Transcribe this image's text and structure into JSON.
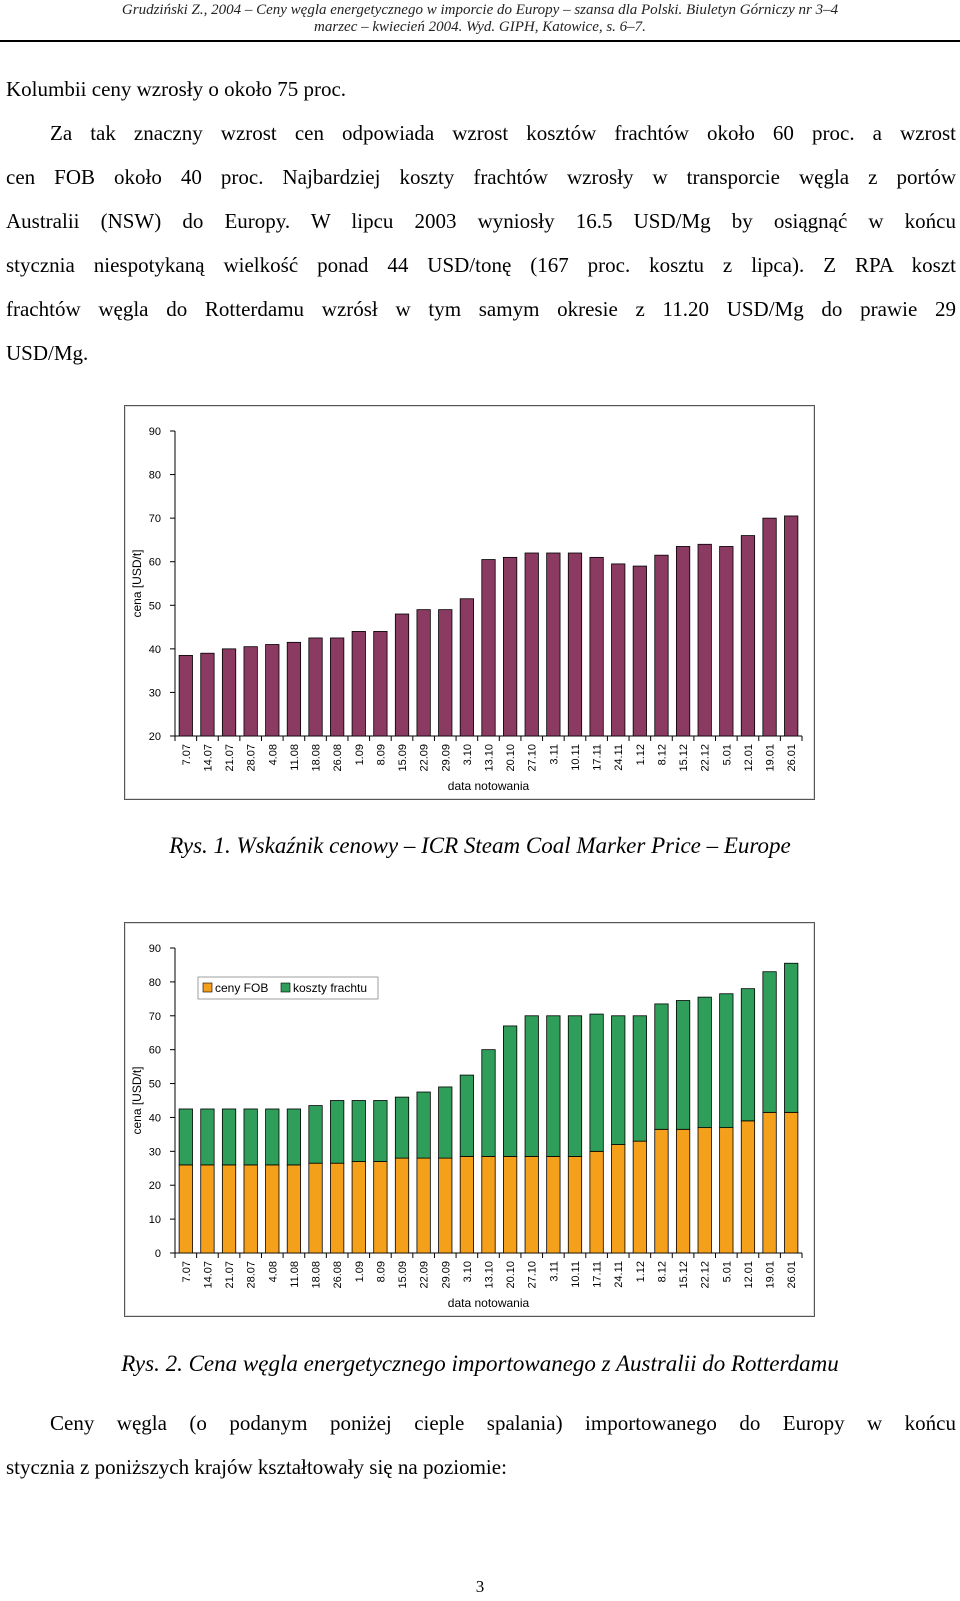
{
  "header": {
    "line1": "Grudziński Z., 2004 – Ceny węgla energetycznego w imporcie do Europy – szansa dla Polski. Biuletyn Górniczy nr 3–4",
    "line2": "marzec – kwiecień 2004. Wyd. GIPH, Katowice, s. 6–7."
  },
  "intro": {
    "first_line": "Kolumbii ceny wzrosły o około 75 proc.",
    "lines": [
      "Za tak znaczny wzrost cen odpowiada wzrost kosztów frachtów około 60 proc. a wzrost",
      "cen FOB około 40 proc. Najbardziej koszty frachtów wzrosły w transporcie węgla z portów",
      "Australii (NSW) do Europy. W lipcu 2003 wyniosły 16.5 USD/Mg  by osiągnąć w końcu",
      "stycznia niespotykaną wielkość ponad 44 USD/tonę (167 proc. kosztu z lipca). Z RPA koszt",
      "frachtów węgla do Rotterdamu wzrósł w tym samym okresie z 11.20 USD/Mg do prawie 29"
    ],
    "last_line": "USD/Mg."
  },
  "captions": {
    "fig1": "Rys. 1. Wskaźnik cenowy – ICR Steam Coal Marker Price – Europe",
    "fig2": "Rys. 2. Cena węgla energetycznego importowanego z Australii do Rotterdamu"
  },
  "outro": {
    "line1": "Ceny węgla (o podanym poniżej cieple spalania) importowanego do Europy w końcu",
    "line2": "stycznia z poniższych krajów kształtowały się na poziomie:"
  },
  "page_number": "3",
  "colors": {
    "bar_fig1": "#8B3A62",
    "fob": "#F5A01A",
    "freight": "#2E9E5A",
    "axis": "#000000"
  },
  "chart_data": [
    {
      "type": "bar",
      "title": "",
      "xlabel": "data notowania",
      "ylabel": "cena [USD/t]",
      "ylim": [
        20,
        90
      ],
      "yticks": [
        20,
        30,
        40,
        50,
        60,
        70,
        80,
        90
      ],
      "categories": [
        "7.07",
        "14.07",
        "21.07",
        "28.07",
        "4.08",
        "11.08",
        "18.08",
        "26.08",
        "1.09",
        "8.09",
        "15.09",
        "22.09",
        "29.09",
        "3.10",
        "13.10",
        "20.10",
        "27.10",
        "3.11",
        "10.11",
        "17.11",
        "24.11",
        "1.12",
        "8.12",
        "15.12",
        "22.12",
        "5.01",
        "12.01",
        "19.01",
        "26.01"
      ],
      "values": [
        38.5,
        39,
        40,
        40.5,
        41,
        41.5,
        42.5,
        42.5,
        44,
        44,
        48,
        49,
        49,
        51.5,
        60.5,
        61,
        62,
        62,
        62,
        61,
        59.5,
        59,
        61.5,
        63.5,
        64,
        63.5,
        66,
        70,
        70.5
      ]
    },
    {
      "type": "bar",
      "stacked": true,
      "title": "",
      "xlabel": "data notowania",
      "ylabel": "cena [USD/t]",
      "ylim": [
        0,
        90
      ],
      "yticks": [
        0,
        10,
        20,
        30,
        40,
        50,
        60,
        70,
        80,
        90
      ],
      "legend": "top-left",
      "categories": [
        "7.07",
        "14.07",
        "21.07",
        "28.07",
        "4.08",
        "11.08",
        "18.08",
        "26.08",
        "1.09",
        "8.09",
        "15.09",
        "22.09",
        "29.09",
        "3.10",
        "13.10",
        "20.10",
        "27.10",
        "3.11",
        "10.11",
        "17.11",
        "24.11",
        "1.12",
        "8.12",
        "15.12",
        "22.12",
        "5.01",
        "12.01",
        "19.01",
        "26.01"
      ],
      "series": [
        {
          "name": "ceny FOB",
          "values": [
            26,
            26,
            26,
            26,
            26,
            26,
            26.5,
            26.5,
            27,
            27,
            28,
            28,
            28,
            28.5,
            28.5,
            28.5,
            28.5,
            28.5,
            28.5,
            30,
            32,
            33,
            36.5,
            36.5,
            37,
            37,
            39,
            41.5,
            41.5
          ]
        },
        {
          "name": "koszty frachtu",
          "values": [
            16.5,
            16.5,
            16.5,
            16.5,
            16.5,
            16.5,
            17,
            18.5,
            18,
            18,
            18,
            19.5,
            21,
            24,
            31.5,
            38.5,
            41.5,
            41.5,
            41.5,
            40.5,
            38,
            37,
            37,
            38,
            38.5,
            39.5,
            39,
            41.5,
            44
          ]
        }
      ]
    }
  ]
}
